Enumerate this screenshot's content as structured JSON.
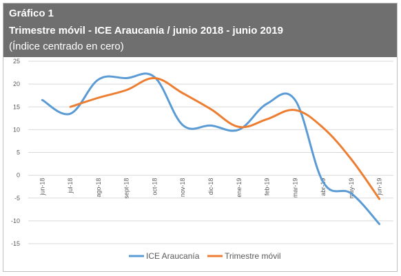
{
  "header": {
    "figure_label": "Gráfico 1",
    "title": "Trimestre móvil - ICE Araucanía / junio 2018 - junio 2019",
    "subtitle": "(Índice centrado en cero)"
  },
  "colors": {
    "header_bg": "#6f6f6f",
    "series_1": "#5b9bd5",
    "series_2": "#ed7d31",
    "grid": "#d9d9d9"
  },
  "chart_data": {
    "type": "line",
    "title": "Trimestre móvil - ICE Araucanía / junio 2018 - junio 2019",
    "subtitle": "(Índice centrado en cero)",
    "categories": [
      "jun-18",
      "jul-18",
      "ago-18",
      "sept-18",
      "oct-18",
      "nov-18",
      "dic-18",
      "ene-19",
      "feb-19",
      "mar-19",
      "abr-19",
      "may-19",
      "jun-19"
    ],
    "ylim": [
      -15,
      25
    ],
    "yticks": [
      -15,
      -10,
      -5,
      0,
      5,
      10,
      15,
      20,
      25
    ],
    "grid": true,
    "legend_position": "bottom",
    "series": [
      {
        "name": "ICE Araucanía",
        "color": "#5b9bd5",
        "values": [
          16.5,
          13.5,
          21,
          21.3,
          21.5,
          11,
          10.9,
          10,
          15.7,
          16.5,
          -1.5,
          -4,
          -10.7
        ]
      },
      {
        "name": "Trimestre móvil",
        "color": "#ed7d31",
        "values": [
          null,
          15,
          17,
          18.7,
          21.3,
          18,
          14.5,
          10.6,
          12.3,
          14.3,
          10.4,
          3.5,
          -5.2
        ]
      }
    ]
  }
}
